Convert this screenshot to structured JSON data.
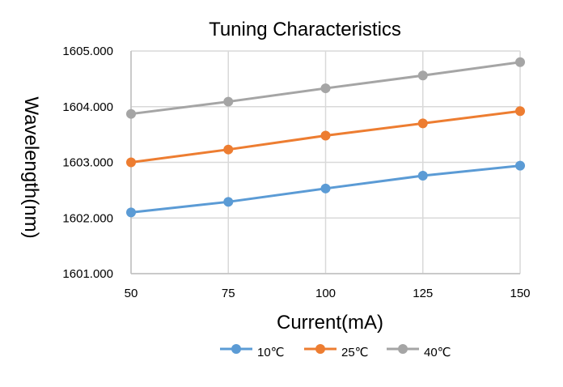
{
  "chart_data": {
    "type": "line",
    "title": "Tuning Characteristics",
    "xlabel": "Current(mA)",
    "ylabel": "Wavelength(nm)",
    "x": [
      50,
      75,
      100,
      125,
      150
    ],
    "x_tick_labels": [
      "50",
      "75",
      "100",
      "125",
      "150"
    ],
    "xlim": [
      50,
      150
    ],
    "ylim": [
      1601.0,
      1605.0
    ],
    "y_ticks": [
      1601.0,
      1602.0,
      1603.0,
      1604.0,
      1605.0
    ],
    "y_tick_labels": [
      "1601.000",
      "1602.000",
      "1603.000",
      "1604.000",
      "1605.000"
    ],
    "grid": true,
    "legend_position": "bottom",
    "series": [
      {
        "name": "10℃",
        "color": "#5B9BD5",
        "values": [
          1602.1,
          1602.29,
          1602.53,
          1602.76,
          1602.94
        ]
      },
      {
        "name": "25℃",
        "color": "#ED7D31",
        "values": [
          1603.0,
          1603.23,
          1603.48,
          1603.7,
          1603.92
        ]
      },
      {
        "name": "40℃",
        "color": "#A5A5A5",
        "values": [
          1603.87,
          1604.09,
          1604.33,
          1604.56,
          1604.8
        ]
      }
    ]
  }
}
